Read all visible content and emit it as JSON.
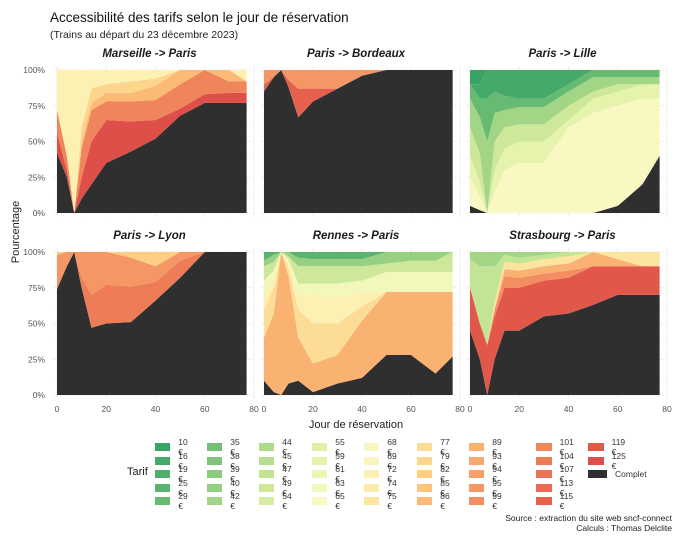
{
  "title": "Accessibilité des tarifs selon le jour de réservation",
  "subtitle": "(Trains au départ du 23 décembre 2023)",
  "source_lines": [
    "Source : extraction du site web sncf-connect",
    "Calculs : Thomas Delclite"
  ],
  "chart_data": {
    "type": "area",
    "stacked": true,
    "normalized": true,
    "title": "Accessibilité des tarifs selon le jour de réservation",
    "subtitle": "(Trains au départ du 23 décembre 2023)",
    "xlabel": "Jour de réservation",
    "ylabel": "Pourcentage",
    "xlim": [
      0,
      80
    ],
    "ylim": [
      0,
      1
    ],
    "x_ticks": [
      0,
      20,
      40,
      60,
      80
    ],
    "y_ticks": [
      0,
      0.25,
      0.5,
      0.75,
      1
    ],
    "y_tick_labels": [
      "0%",
      "25%",
      "50%",
      "75%",
      "100%"
    ],
    "grid": true,
    "legend_title": "Tarif",
    "legend_position": "bottom",
    "tariffs": [
      {
        "label": "10 €",
        "color": "#3aa466"
      },
      {
        "label": "16 €",
        "color": "#45a96a"
      },
      {
        "label": "19 €",
        "color": "#4fae6c"
      },
      {
        "label": "25 €",
        "color": "#5ab46f"
      },
      {
        "label": "29 €",
        "color": "#66ba72"
      },
      {
        "label": "35 €",
        "color": "#72c076"
      },
      {
        "label": "38 €",
        "color": "#7fc57a"
      },
      {
        "label": "39 €",
        "color": "#8bcb7e"
      },
      {
        "label": "40 €",
        "color": "#97d082"
      },
      {
        "label": "42 €",
        "color": "#a2d586"
      },
      {
        "label": "44 €",
        "color": "#addb8a"
      },
      {
        "label": "45 €",
        "color": "#b8df8f"
      },
      {
        "label": "47 €",
        "color": "#c3e494"
      },
      {
        "label": "49 €",
        "color": "#cde899"
      },
      {
        "label": "54 €",
        "color": "#d6eca0"
      },
      {
        "label": "55 €",
        "color": "#dff0a6"
      },
      {
        "label": "59 €",
        "color": "#e6f3ad"
      },
      {
        "label": "61 €",
        "color": "#edf6b5"
      },
      {
        "label": "63 €",
        "color": "#f2f8bc"
      },
      {
        "label": "65 €",
        "color": "#f6f9c3"
      },
      {
        "label": "68 €",
        "color": "#f9f8c2"
      },
      {
        "label": "69 €",
        "color": "#fcf5bd"
      },
      {
        "label": "72 €",
        "color": "#fdf0b3"
      },
      {
        "label": "74 €",
        "color": "#fdebaa"
      },
      {
        "label": "75 €",
        "color": "#fde5a0"
      },
      {
        "label": "77 €",
        "color": "#fddd96"
      },
      {
        "label": "79 €",
        "color": "#fdd58c"
      },
      {
        "label": "82 €",
        "color": "#fdcd84"
      },
      {
        "label": "85 €",
        "color": "#fcc47d"
      },
      {
        "label": "86 €",
        "color": "#fbbb77"
      },
      {
        "label": "89 €",
        "color": "#fab272"
      },
      {
        "label": "93 €",
        "color": "#f8a96d"
      },
      {
        "label": "94 €",
        "color": "#f6a068"
      },
      {
        "label": "95 €",
        "color": "#f49764"
      },
      {
        "label": "99 €",
        "color": "#f28e60"
      },
      {
        "label": "101 €",
        "color": "#f0855b"
      },
      {
        "label": "104 €",
        "color": "#ee7c57"
      },
      {
        "label": "107 €",
        "color": "#eb7354"
      },
      {
        "label": "113 €",
        "color": "#e86a51"
      },
      {
        "label": "115 €",
        "color": "#e5614e"
      },
      {
        "label": "119 €",
        "color": "#e1584b"
      },
      {
        "label": "125 €",
        "color": "#dd4f48"
      },
      {
        "label": "Complet",
        "color": "#2f2f2f"
      }
    ],
    "x": [
      0,
      4,
      7,
      10,
      14,
      20,
      30,
      40,
      50,
      60,
      70,
      77
    ],
    "panels": [
      {
        "name": "Marseille -> Paris",
        "series": [
          {
            "name": "Complet",
            "values": [
              0.42,
              0.25,
              0.0,
              0.1,
              0.2,
              0.35,
              0.43,
              0.52,
              0.68,
              0.77,
              0.77,
              0.77
            ]
          },
          {
            "name": "125 €",
            "values": [
              0.14,
              0.05,
              0.0,
              0.15,
              0.3,
              0.3,
              0.21,
              0.13,
              0.05,
              0.06,
              0.07,
              0.07
            ]
          },
          {
            "name": "101 €",
            "values": [
              0.16,
              0.1,
              0.0,
              0.2,
              0.22,
              0.13,
              0.14,
              0.14,
              0.17,
              0.17,
              0.08,
              0.08
            ]
          },
          {
            "name": "86 €",
            "values": [
              0.0,
              0.0,
              0.0,
              0.05,
              0.05,
              0.06,
              0.06,
              0.1,
              0.1,
              0.0,
              0.08,
              0.0
            ]
          },
          {
            "name": "79 €",
            "values": [
              0.0,
              0.0,
              0.0,
              0.1,
              0.1,
              0.06,
              0.08,
              0.05,
              0.0,
              0.0,
              0.0,
              0.0
            ]
          },
          {
            "name": "72 €",
            "values": [
              0.28,
              0.6,
              1.0,
              0.4,
              0.13,
              0.1,
              0.08,
              0.06,
              0.0,
              0.0,
              0.0,
              0.08
            ]
          }
        ]
      },
      {
        "name": "Paris -> Bordeaux",
        "series": [
          {
            "name": "Complet",
            "values": [
              0.85,
              0.95,
              1.0,
              0.88,
              0.67,
              0.78,
              0.87,
              0.96,
              1.0,
              1.0,
              1.0,
              1.0
            ]
          },
          {
            "name": "115 €",
            "values": [
              0.05,
              0.0,
              0.0,
              0.05,
              0.2,
              0.09,
              0.0,
              0.0,
              0.0,
              0.0,
              0.0,
              0.0
            ]
          },
          {
            "name": "95 €",
            "values": [
              0.1,
              0.05,
              0.0,
              0.07,
              0.13,
              0.13,
              0.13,
              0.04,
              0.0,
              0.0,
              0.0,
              0.0
            ]
          }
        ]
      },
      {
        "name": "Paris -> Lille",
        "series": [
          {
            "name": "Complet",
            "values": [
              0.05,
              0.02,
              0.0,
              0.0,
              0.0,
              0.0,
              0.0,
              0.0,
              0.0,
              0.05,
              0.2,
              0.4
            ]
          },
          {
            "name": "68 €",
            "values": [
              0.2,
              0.1,
              0.0,
              0.15,
              0.3,
              0.35,
              0.35,
              0.6,
              0.7,
              0.7,
              0.6,
              0.4
            ]
          },
          {
            "name": "59 €",
            "values": [
              0.15,
              0.1,
              0.0,
              0.15,
              0.15,
              0.15,
              0.15,
              0.05,
              0.1,
              0.1,
              0.1,
              0.1
            ]
          },
          {
            "name": "49 €",
            "values": [
              0.2,
              0.2,
              0.0,
              0.2,
              0.15,
              0.12,
              0.12,
              0.1,
              0.05,
              0.05,
              0.0,
              0.0
            ]
          },
          {
            "name": "42 €",
            "values": [
              0.2,
              0.25,
              0.5,
              0.2,
              0.12,
              0.12,
              0.12,
              0.1,
              0.1,
              0.05,
              0.05,
              0.05
            ]
          },
          {
            "name": "29 €",
            "values": [
              0.1,
              0.13,
              0.3,
              0.15,
              0.1,
              0.06,
              0.06,
              0.05,
              0.05,
              0.05,
              0.05,
              0.05
            ]
          },
          {
            "name": "16 €",
            "values": [
              0.0,
              0.1,
              0.2,
              0.15,
              0.18,
              0.2,
              0.2,
              0.1,
              0.0,
              0.0,
              0.0,
              0.0
            ]
          },
          {
            "name": "10 €",
            "values": [
              0.1,
              0.1,
              0.0,
              0.0,
              0.0,
              0.0,
              0.0,
              0.0,
              0.0,
              0.0,
              0.0,
              0.0
            ]
          }
        ]
      },
      {
        "name": "Paris -> Lyon",
        "series": [
          {
            "name": "Complet",
            "values": [
              0.74,
              0.9,
              1.0,
              0.75,
              0.47,
              0.5,
              0.51,
              0.66,
              0.82,
              1.0,
              1.0,
              1.0
            ]
          },
          {
            "name": "104 €",
            "values": [
              0.02,
              0.0,
              0.0,
              0.07,
              0.23,
              0.27,
              0.25,
              0.13,
              0.12,
              0.0,
              0.0,
              0.0
            ]
          },
          {
            "name": "95 €",
            "values": [
              0.22,
              0.1,
              0.0,
              0.18,
              0.3,
              0.23,
              0.2,
              0.11,
              0.06,
              0.0,
              0.0,
              0.0
            ]
          },
          {
            "name": "82 €",
            "values": [
              0.02,
              0.0,
              0.0,
              0.0,
              0.0,
              0.0,
              0.04,
              0.1,
              0.0,
              0.0,
              0.0,
              0.0
            ]
          }
        ]
      },
      {
        "name": "Rennes -> Paris",
        "series": [
          {
            "name": "Complet",
            "values": [
              0.1,
              0.02,
              0.0,
              0.08,
              0.1,
              0.02,
              0.08,
              0.12,
              0.28,
              0.28,
              0.15,
              0.27
            ]
          },
          {
            "name": "89 €",
            "values": [
              0.3,
              0.55,
              1.0,
              0.75,
              0.3,
              0.2,
              0.2,
              0.4,
              0.44,
              0.44,
              0.57,
              0.45
            ]
          },
          {
            "name": "77 €",
            "values": [
              0.2,
              0.18,
              0.0,
              0.06,
              0.2,
              0.28,
              0.22,
              0.1,
              0.0,
              0.0,
              0.0,
              0.0
            ]
          },
          {
            "name": "72 €",
            "values": [
              0.1,
              0.06,
              0.0,
              0.03,
              0.1,
              0.2,
              0.18,
              0.1,
              0.0,
              0.0,
              0.0,
              0.0
            ]
          },
          {
            "name": "63 €",
            "values": [
              0.1,
              0.06,
              0.0,
              0.03,
              0.08,
              0.08,
              0.1,
              0.08,
              0.14,
              0.14,
              0.14,
              0.14
            ]
          },
          {
            "name": "49 €",
            "values": [
              0.1,
              0.06,
              0.0,
              0.02,
              0.12,
              0.12,
              0.12,
              0.1,
              0.06,
              0.08,
              0.08,
              0.14
            ]
          },
          {
            "name": "40 €",
            "values": [
              0.04,
              0.05,
              0.0,
              0.03,
              0.06,
              0.05,
              0.05,
              0.05,
              0.08,
              0.06,
              0.06,
              0.0
            ]
          },
          {
            "name": "25 €",
            "values": [
              0.06,
              0.02,
              0.0,
              0.0,
              0.04,
              0.05,
              0.05,
              0.05,
              0.0,
              0.0,
              0.0,
              0.0
            ]
          }
        ]
      },
      {
        "name": "Strasbourg -> Paris",
        "series": [
          {
            "name": "Complet",
            "values": [
              0.45,
              0.25,
              0.0,
              0.25,
              0.45,
              0.45,
              0.55,
              0.57,
              0.63,
              0.7,
              0.7,
              0.7
            ]
          },
          {
            "name": "119 €",
            "values": [
              0.3,
              0.25,
              0.35,
              0.3,
              0.3,
              0.3,
              0.25,
              0.25,
              0.27,
              0.2,
              0.2,
              0.2
            ]
          },
          {
            "name": "99 €",
            "values": [
              0.0,
              0.0,
              0.0,
              0.05,
              0.08,
              0.07,
              0.05,
              0.05,
              0.0,
              0.0,
              0.0,
              0.0
            ]
          },
          {
            "name": "89 €",
            "values": [
              0.0,
              0.0,
              0.0,
              0.0,
              0.05,
              0.05,
              0.05,
              0.05,
              0.1,
              0.05,
              0.0,
              0.0
            ]
          },
          {
            "name": "75 €",
            "values": [
              0.0,
              0.0,
              0.0,
              0.05,
              0.05,
              0.05,
              0.05,
              0.05,
              0.0,
              0.05,
              0.1,
              0.1
            ]
          },
          {
            "name": "47 €",
            "values": [
              0.2,
              0.4,
              0.55,
              0.25,
              0.05,
              0.04,
              0.03,
              0.03,
              0.0,
              0.0,
              0.0,
              0.0
            ]
          },
          {
            "name": "42 €",
            "values": [
              0.05,
              0.1,
              0.1,
              0.1,
              0.02,
              0.04,
              0.02,
              0.0,
              0.0,
              0.0,
              0.0,
              0.0
            ]
          }
        ]
      }
    ]
  }
}
